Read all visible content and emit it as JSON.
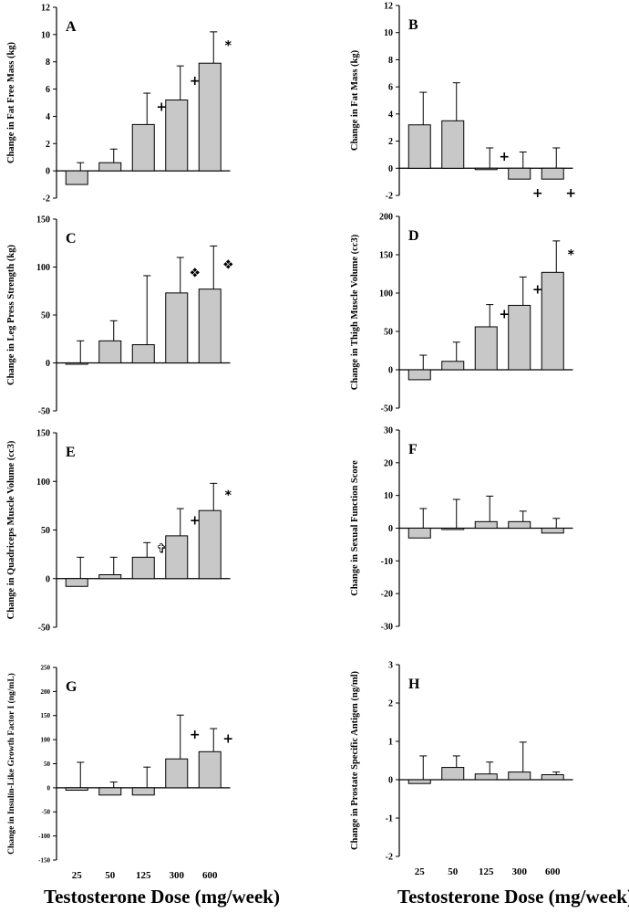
{
  "figure": {
    "x_caption_left": "Testosterone Dose (mg/week)",
    "x_caption_right": "Testosterone Dose (mg/week)"
  },
  "chart_data": [
    {
      "type": "bar",
      "panel": "A",
      "ylabel": "Change in Fat Free Mass (kg)",
      "categories": [
        "25",
        "50",
        "125",
        "300",
        "600"
      ],
      "values": [
        -1.0,
        0.6,
        3.4,
        5.2,
        7.9
      ],
      "errors": [
        1.6,
        1.0,
        2.3,
        2.5,
        2.3
      ],
      "markers": [
        "",
        "",
        "+",
        "+",
        "*"
      ],
      "ylim": [
        -2,
        12
      ],
      "yticks": [
        -2,
        0,
        2,
        4,
        6,
        8,
        10,
        12
      ],
      "ytick_labels": [
        "-2",
        "0",
        "2",
        "4",
        "6",
        "8",
        "10",
        "12"
      ]
    },
    {
      "type": "bar",
      "panel": "B",
      "ylabel": "Change in Fat Mass (kg)",
      "categories": [
        "25",
        "50",
        "125",
        "300",
        "600"
      ],
      "values": [
        3.2,
        3.5,
        0.0,
        -0.8,
        -0.8
      ],
      "errors": [
        2.4,
        2.8,
        1.5,
        2.0,
        2.3
      ],
      "markers": [
        "",
        "",
        "+",
        "+",
        "+"
      ],
      "ylim": [
        -2,
        12
      ],
      "yticks": [
        -2,
        0,
        2,
        4,
        6,
        8,
        10,
        12
      ],
      "ytick_labels": [
        "-2",
        "0",
        "2",
        "4",
        "6",
        "8",
        "10",
        "12"
      ]
    },
    {
      "type": "bar",
      "panel": "C",
      "ylabel": "Change in Leg Press Strength (kg)",
      "categories": [
        "25",
        "50",
        "125",
        "300",
        "600"
      ],
      "values": [
        -1,
        23,
        19,
        73,
        77
      ],
      "errors": [
        24,
        21,
        72,
        37,
        45
      ],
      "markers": [
        "",
        "",
        "",
        "❖",
        "❖"
      ],
      "ylim": [
        -50,
        150
      ],
      "yticks": [
        -50,
        0,
        50,
        100,
        150
      ],
      "ytick_labels": [
        "-50",
        "0",
        "50",
        "100",
        "150"
      ]
    },
    {
      "type": "bar",
      "panel": "D",
      "ylabel": "Change in Thigh Muscle Volume (cc3)",
      "categories": [
        "25",
        "50",
        "125",
        "300",
        "600"
      ],
      "values": [
        -13,
        11,
        56,
        84,
        127
      ],
      "errors": [
        32,
        25,
        29,
        37,
        41
      ],
      "markers": [
        "",
        "",
        "+",
        "+",
        "*"
      ],
      "ylim": [
        -50,
        200
      ],
      "yticks": [
        -50,
        0,
        50,
        100,
        150,
        200
      ],
      "ytick_labels": [
        "-50",
        "0",
        "50",
        "100",
        "150",
        "200"
      ]
    },
    {
      "type": "bar",
      "panel": "E",
      "ylabel": "Change in Quadriceps Muscle Volume (cc3)",
      "categories": [
        "25",
        "50",
        "125",
        "300",
        "600"
      ],
      "values": [
        -8,
        4,
        22,
        44,
        70
      ],
      "errors": [
        30,
        18,
        15,
        28,
        28
      ],
      "markers": [
        "",
        "",
        "✞",
        "+",
        "*"
      ],
      "ylim": [
        -50,
        150
      ],
      "yticks": [
        -50,
        0,
        50,
        100,
        150
      ],
      "ytick_labels": [
        "-50",
        "0",
        "50",
        "100",
        "150"
      ]
    },
    {
      "type": "bar",
      "panel": "F",
      "ylabel": "Change in Sexual Function Score",
      "categories": [
        "25",
        "50",
        "125",
        "300",
        "600"
      ],
      "values": [
        -3,
        0,
        2,
        2,
        -1.5
      ],
      "errors": [
        9,
        8.8,
        7.8,
        3.2,
        4.5
      ],
      "markers": [
        "",
        "",
        "",
        "",
        ""
      ],
      "ylim": [
        -30,
        30
      ],
      "yticks": [
        -30,
        -20,
        -10,
        0,
        10,
        20,
        30
      ],
      "ytick_labels": [
        "-30",
        "-20",
        "-10",
        "0",
        "10",
        "20",
        "30"
      ]
    },
    {
      "type": "bar",
      "panel": "G",
      "ylabel": "Change in Insulin-Like Growth Factor I (ng/mL)",
      "categories": [
        "25",
        "50",
        "125",
        "300",
        "600"
      ],
      "values": [
        -5,
        -15,
        -15,
        60,
        75
      ],
      "errors": [
        58,
        27,
        58,
        91,
        48
      ],
      "markers": [
        "",
        "",
        "",
        "+",
        "+"
      ],
      "ylim": [
        -150,
        250
      ],
      "yticks": [
        -150,
        -100,
        -50,
        0,
        50,
        100,
        150,
        200,
        250
      ],
      "ytick_labels": [
        "-150",
        "-100",
        "-50",
        "0",
        "50",
        "100",
        "150",
        "200",
        "250"
      ]
    },
    {
      "type": "bar",
      "panel": "H",
      "ylabel": "Change in Prostate Specific Antigen (ng/ml)",
      "categories": [
        "25",
        "50",
        "125",
        "300",
        "600"
      ],
      "values": [
        -0.1,
        0.32,
        0.15,
        0.2,
        0.13
      ],
      "errors": [
        0.72,
        0.3,
        0.31,
        0.78,
        0.07
      ],
      "markers": [
        "",
        "",
        "",
        "",
        ""
      ],
      "ylim": [
        -2,
        3
      ],
      "yticks": [
        -2,
        -1,
        0,
        1,
        2,
        3
      ],
      "ytick_labels": [
        "-2",
        "-1",
        "0",
        "1",
        "2",
        "3"
      ]
    }
  ]
}
